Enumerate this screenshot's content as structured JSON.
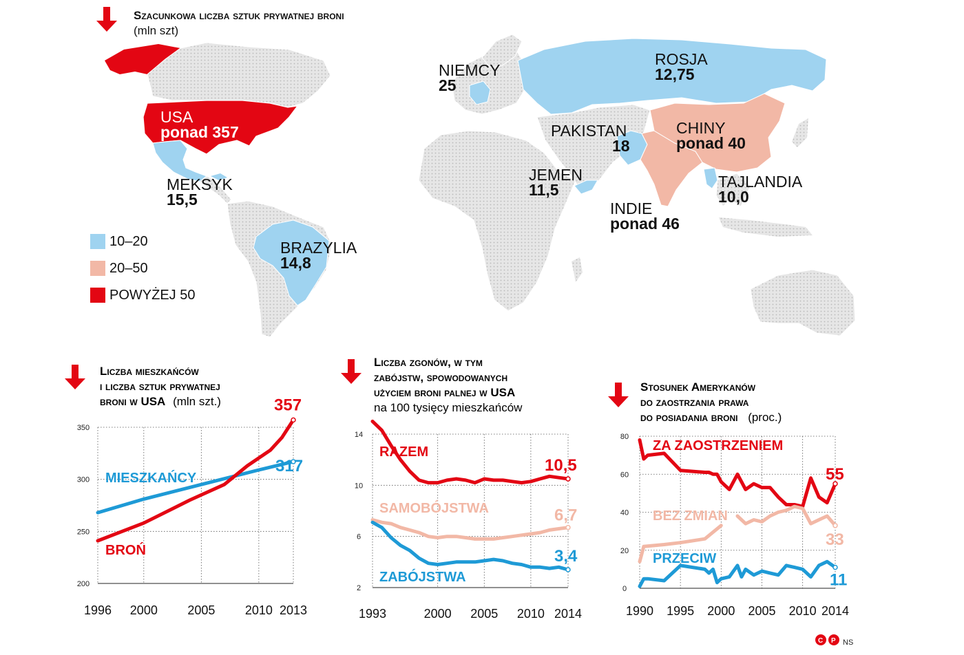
{
  "colors": {
    "red": "#e30613",
    "blue": "#1e9ad6",
    "pink": "#f2b8a6",
    "light_blue": "#9fd3f0",
    "map_grey": "#dcdcdc"
  },
  "map": {
    "title": "Szacunkowa liczba sztuk prywatnej broni",
    "unit": "(mln szt)",
    "legend": [
      {
        "label": "10–20",
        "color": "#9fd3f0"
      },
      {
        "label": "20–50",
        "color": "#f2b8a6"
      },
      {
        "label": "POWYŻEJ 50",
        "color": "#e30613"
      }
    ],
    "countries": [
      {
        "name": "USA",
        "value": "ponad 357",
        "category": "POWYŻEJ 50"
      },
      {
        "name": "MEKSYK",
        "value": "15,5",
        "category": "10–20"
      },
      {
        "name": "BRAZYLIA",
        "value": "14,8",
        "category": "10–20"
      },
      {
        "name": "NIEMCY",
        "value": "25",
        "category": "20–50"
      },
      {
        "name": "ROSJA",
        "value": "12,75",
        "category": "10–20"
      },
      {
        "name": "PAKISTAN",
        "value": "18",
        "category": "10–20"
      },
      {
        "name": "CHINY",
        "value": "ponad 40",
        "category": "20–50"
      },
      {
        "name": "JEMEN",
        "value": "11,5",
        "category": "10–20"
      },
      {
        "name": "TAJLANDIA",
        "value": "10,0",
        "category": "10–20"
      },
      {
        "name": "INDIE",
        "value": "ponad 46",
        "category": "20–50"
      }
    ]
  },
  "chart_data": [
    {
      "type": "line",
      "title": "Liczba mieszkańców i liczba sztuk prywatnej broni w USA",
      "unit": "(mln szt.)",
      "x_ticks": [
        1996,
        2000,
        2005,
        2010,
        2013
      ],
      "y_ticks": [
        200,
        250,
        300,
        350
      ],
      "xlim": [
        1996,
        2013
      ],
      "ylim": [
        200,
        350
      ],
      "series": [
        {
          "name": "MIESZKAŃCY",
          "color": "#1e9ad6",
          "x": [
            1996,
            2000,
            2005,
            2010,
            2013
          ],
          "y": [
            268,
            281,
            295,
            309,
            317
          ],
          "end_label": "317"
        },
        {
          "name": "BROŃ",
          "color": "#e30613",
          "x": [
            1996,
            2000,
            2004,
            2007,
            2009,
            2011,
            2012,
            2013
          ],
          "y": [
            241,
            258,
            280,
            295,
            313,
            328,
            340,
            357
          ],
          "end_label": "357"
        }
      ]
    },
    {
      "type": "line",
      "title": "Liczba zgonów, w tym zabójstw, spowodowanych użyciem broni palnej w USA",
      "unit": "na 100 tysięcy mieszkańców",
      "x_ticks": [
        1993,
        2000,
        2005,
        2010,
        2014
      ],
      "y_ticks": [
        2,
        6,
        10,
        14
      ],
      "xlim": [
        1993,
        2014
      ],
      "ylim": [
        2,
        14
      ],
      "series": [
        {
          "name": "RAZEM",
          "color": "#e30613",
          "x": [
            1993,
            1994,
            1995,
            1996,
            1997,
            1998,
            1999,
            2000,
            2001,
            2002,
            2003,
            2004,
            2005,
            2006,
            2007,
            2008,
            2009,
            2010,
            2011,
            2012,
            2013,
            2014
          ],
          "y": [
            15.0,
            14.3,
            13.1,
            12.0,
            11.1,
            10.4,
            10.2,
            10.2,
            10.4,
            10.5,
            10.4,
            10.2,
            10.5,
            10.4,
            10.4,
            10.3,
            10.2,
            10.3,
            10.5,
            10.7,
            10.6,
            10.5
          ],
          "end_label": "10,5"
        },
        {
          "name": "SAMOBÓJSTWA",
          "color": "#f2b8a6",
          "x": [
            1993,
            1994,
            1995,
            1996,
            1997,
            1998,
            1999,
            2000,
            2001,
            2002,
            2003,
            2004,
            2005,
            2006,
            2007,
            2008,
            2009,
            2010,
            2011,
            2012,
            2013,
            2014
          ],
          "y": [
            7.3,
            7.1,
            7.0,
            6.7,
            6.5,
            6.3,
            6.0,
            5.9,
            6.0,
            6.0,
            5.9,
            5.8,
            5.8,
            5.8,
            5.9,
            6.0,
            6.1,
            6.2,
            6.3,
            6.5,
            6.6,
            6.7
          ],
          "end_label": "6,7"
        },
        {
          "name": "ZABÓJSTWA",
          "color": "#1e9ad6",
          "x": [
            1993,
            1994,
            1995,
            1996,
            1997,
            1998,
            1999,
            2000,
            2001,
            2002,
            2003,
            2004,
            2005,
            2006,
            2007,
            2008,
            2009,
            2010,
            2011,
            2012,
            2013,
            2014
          ],
          "y": [
            7.1,
            6.7,
            5.9,
            5.3,
            4.9,
            4.3,
            3.9,
            3.8,
            3.9,
            4.0,
            4.0,
            4.0,
            4.1,
            4.2,
            4.1,
            3.9,
            3.8,
            3.6,
            3.6,
            3.5,
            3.6,
            3.4
          ],
          "end_label": "3,4"
        }
      ]
    },
    {
      "type": "line",
      "title": "Stosunek Amerykanów do zaostrzania prawa do posiadania broni",
      "unit": "(proc.)",
      "x_ticks": [
        1990,
        1995,
        2000,
        2005,
        2010,
        2014
      ],
      "y_ticks": [
        0,
        20,
        40,
        60,
        80
      ],
      "xlim": [
        1990,
        2014
      ],
      "ylim": [
        0,
        80
      ],
      "series": [
        {
          "name": "ZA ZAOSTRZENIEM",
          "color": "#e30613",
          "x": [
            1990,
            1990.5,
            1991,
            1993,
            1995,
            1998,
            1998.5,
            1999,
            1999.5,
            2000,
            2001,
            2002,
            2002.5,
            2003,
            2004,
            2005,
            2006,
            2007,
            2008,
            2009,
            2010,
            2011,
            2012,
            2013,
            2014
          ],
          "y": [
            78,
            68,
            70,
            71,
            62,
            61,
            61,
            60,
            60,
            56,
            52,
            60,
            56,
            52,
            55,
            53,
            53,
            48,
            44,
            44,
            43,
            58,
            48,
            45,
            55
          ],
          "end_label": "55"
        },
        {
          "name": "BEZ ZMIAN",
          "color": "#f2b8a6",
          "x": [
            1990,
            1990.5,
            1993,
            1995,
            1998,
            2000
          ],
          "y": [
            14,
            22,
            23,
            24,
            26,
            33
          ],
          "gap_after": 2000,
          "end_label": ""
        },
        {
          "name": "BEZ ZMIAN (cd.)",
          "color": "#f2b8a6",
          "x": [
            2002,
            2003,
            2004,
            2005,
            2006,
            2007,
            2008,
            2009,
            2010,
            2011,
            2012,
            2013,
            2014
          ],
          "y": [
            38,
            34,
            36,
            35,
            38,
            40,
            41,
            43,
            42,
            34,
            36,
            38,
            33
          ],
          "end_label": "33"
        },
        {
          "name": "PRZECIW",
          "color": "#1e9ad6",
          "x": [
            1990,
            1990.5,
            1991,
            1993,
            1995,
            1998,
            1998.5,
            1999,
            1999.5,
            2000,
            2001,
            2002,
            2002.5,
            2003,
            2004,
            2005,
            2006,
            2007,
            2008,
            2009,
            2010,
            2011,
            2012,
            2013,
            2014
          ],
          "y": [
            1,
            5,
            5,
            4,
            12,
            10,
            8,
            10,
            3,
            5,
            6,
            12,
            6,
            10,
            7,
            9,
            8,
            7,
            12,
            11,
            10,
            6,
            12,
            14,
            11
          ],
          "end_label": "11"
        }
      ]
    }
  ],
  "chart_titles": {
    "c1_line1": "Liczba mieszkańców",
    "c1_line2": "i liczba sztuk prywatnej",
    "c1_line3": "broni w USA",
    "c1_unit": "(mln szt.)",
    "c2_line1": "Liczba zgonów, w tym",
    "c2_line2": "zabójstw, spowodowanych",
    "c2_line3": "użyciem broni palnej w USA",
    "c2_unit": "na 100 tysięcy mieszkańców",
    "c3_line1": "Stosunek Amerykanów",
    "c3_line2": "do zaostrzania prawa",
    "c3_line3": "do posiadania broni",
    "c3_unit": "(proc.)"
  },
  "footer": {
    "logo_c": "C",
    "logo_p": "P",
    "author": "NS"
  }
}
